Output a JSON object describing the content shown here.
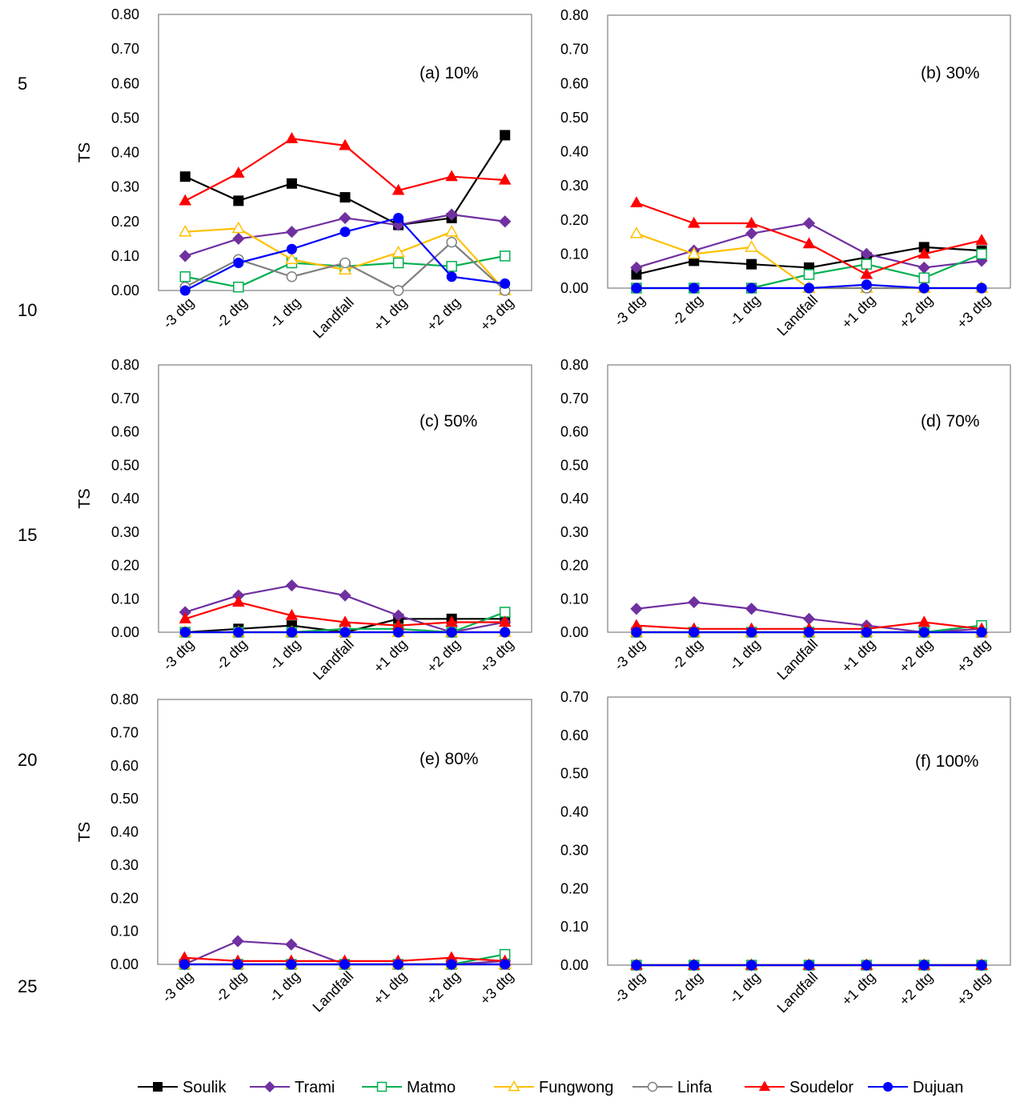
{
  "line_numbers": [
    "5",
    "10",
    "15",
    "20",
    "25"
  ],
  "colors": {
    "Soulik": "#000000",
    "Trami": "#7030a0",
    "Matmo": "#00b050",
    "Fungwong": "#ffc000",
    "Linfa": "#808080",
    "Soudelor": "#ff0000",
    "Dujuan": "#0000ff"
  },
  "legend": [
    {
      "name": "Soulik",
      "marker": "square-filled"
    },
    {
      "name": "Trami",
      "marker": "diamond-filled"
    },
    {
      "name": "Matmo",
      "marker": "square-open"
    },
    {
      "name": "Fungwong",
      "marker": "triangle-open"
    },
    {
      "name": "Linfa",
      "marker": "circle-open"
    },
    {
      "name": "Soudelor",
      "marker": "triangle-filled"
    },
    {
      "name": "Dujuan",
      "marker": "circle-filled"
    }
  ],
  "chart_data": [
    {
      "type": "line",
      "panel_label": "(a)  10%",
      "ylabel": "TS",
      "ylim": [
        0,
        0.8
      ],
      "yticks": [
        "0.00",
        "0.10",
        "0.20",
        "0.30",
        "0.40",
        "0.50",
        "0.60",
        "0.70",
        "0.80"
      ],
      "categories": [
        "-3 dtg",
        "-2 dtg",
        "-1 dtg",
        "Landfall",
        "+1 dtg",
        "+2 dtg",
        "+3 dtg"
      ],
      "series": [
        {
          "name": "Soulik",
          "values": [
            0.33,
            0.26,
            0.31,
            0.27,
            0.19,
            0.21,
            0.45
          ]
        },
        {
          "name": "Trami",
          "values": [
            0.1,
            0.15,
            0.17,
            0.21,
            0.19,
            0.22,
            0.2
          ]
        },
        {
          "name": "Matmo",
          "values": [
            0.04,
            0.01,
            0.08,
            0.07,
            0.08,
            0.07,
            0.1
          ]
        },
        {
          "name": "Fungwong",
          "values": [
            0.17,
            0.18,
            0.09,
            0.06,
            0.11,
            0.17,
            0.0
          ]
        },
        {
          "name": "Linfa",
          "values": [
            0.01,
            0.09,
            0.04,
            0.08,
            0.0,
            0.14,
            0.0
          ]
        },
        {
          "name": "Soudelor",
          "values": [
            0.26,
            0.34,
            0.44,
            0.42,
            0.29,
            0.33,
            0.32
          ]
        },
        {
          "name": "Dujuan",
          "values": [
            0.0,
            0.08,
            0.12,
            0.17,
            0.21,
            0.04,
            0.02
          ]
        }
      ]
    },
    {
      "type": "line",
      "panel_label": "(b)  30%",
      "ylabel": "",
      "ylim": [
        0,
        0.8
      ],
      "yticks": [
        "0.00",
        "0.10",
        "0.20",
        "0.30",
        "0.40",
        "0.50",
        "0.60",
        "0.70",
        "0.80"
      ],
      "categories": [
        "-3 dtg",
        "-2 dtg",
        "-1 dtg",
        "Landfall",
        "+1 dtg",
        "+2 dtg",
        "+3 dtg"
      ],
      "series": [
        {
          "name": "Soulik",
          "values": [
            0.04,
            0.08,
            0.07,
            0.06,
            0.09,
            0.12,
            0.11
          ]
        },
        {
          "name": "Trami",
          "values": [
            0.06,
            0.11,
            0.16,
            0.19,
            0.1,
            0.06,
            0.08
          ]
        },
        {
          "name": "Matmo",
          "values": [
            0.0,
            0.0,
            0.0,
            0.04,
            0.07,
            0.03,
            0.1
          ]
        },
        {
          "name": "Fungwong",
          "values": [
            0.16,
            0.1,
            0.12,
            0.0,
            0.0,
            0.0,
            0.0
          ]
        },
        {
          "name": "Linfa",
          "values": [
            0.0,
            0.0,
            0.0,
            0.0,
            0.0,
            0.0,
            0.0
          ]
        },
        {
          "name": "Soudelor",
          "values": [
            0.25,
            0.19,
            0.19,
            0.13,
            0.04,
            0.1,
            0.14
          ]
        },
        {
          "name": "Dujuan",
          "values": [
            0.0,
            0.0,
            0.0,
            0.0,
            0.01,
            0.0,
            0.0
          ]
        }
      ]
    },
    {
      "type": "line",
      "panel_label": "(c)  50%",
      "ylabel": "TS",
      "ylim": [
        0,
        0.8
      ],
      "yticks": [
        "0.00",
        "0.10",
        "0.20",
        "0.30",
        "0.40",
        "0.50",
        "0.60",
        "0.70",
        "0.80"
      ],
      "categories": [
        "-3 dtg",
        "-2 dtg",
        "-1 dtg",
        "Landfall",
        "+1 dtg",
        "+2 dtg",
        "+3 dtg"
      ],
      "series": [
        {
          "name": "Soulik",
          "values": [
            0.0,
            0.01,
            0.02,
            0.0,
            0.04,
            0.04,
            0.04
          ]
        },
        {
          "name": "Trami",
          "values": [
            0.06,
            0.11,
            0.14,
            0.11,
            0.05,
            0.0,
            0.03
          ]
        },
        {
          "name": "Matmo",
          "values": [
            0.0,
            0.0,
            0.0,
            0.01,
            0.01,
            0.0,
            0.06
          ]
        },
        {
          "name": "Fungwong",
          "values": [
            0.0,
            0.0,
            0.0,
            0.0,
            0.0,
            0.0,
            0.0
          ]
        },
        {
          "name": "Linfa",
          "values": [
            0.0,
            0.0,
            0.0,
            0.0,
            0.0,
            0.0,
            0.0
          ]
        },
        {
          "name": "Soudelor",
          "values": [
            0.04,
            0.09,
            0.05,
            0.03,
            0.02,
            0.03,
            0.03
          ]
        },
        {
          "name": "Dujuan",
          "values": [
            0.0,
            0.0,
            0.0,
            0.0,
            0.0,
            0.0,
            0.0
          ]
        }
      ]
    },
    {
      "type": "line",
      "panel_label": "(d)  70%",
      "ylabel": "",
      "ylim": [
        0,
        0.8
      ],
      "yticks": [
        "0.00",
        "0.10",
        "0.20",
        "0.30",
        "0.40",
        "0.50",
        "0.60",
        "0.70",
        "0.80"
      ],
      "categories": [
        "-3 dtg",
        "-2 dtg",
        "-1 dtg",
        "Landfall",
        "+1 dtg",
        "+2 dtg",
        "+3 dtg"
      ],
      "series": [
        {
          "name": "Soulik",
          "values": [
            0.0,
            0.0,
            0.0,
            0.0,
            0.0,
            0.0,
            0.0
          ]
        },
        {
          "name": "Trami",
          "values": [
            0.07,
            0.09,
            0.07,
            0.04,
            0.02,
            0.0,
            0.01
          ]
        },
        {
          "name": "Matmo",
          "values": [
            0.0,
            0.0,
            0.0,
            0.0,
            0.0,
            0.0,
            0.02
          ]
        },
        {
          "name": "Fungwong",
          "values": [
            0.0,
            0.0,
            0.0,
            0.0,
            0.0,
            0.0,
            0.0
          ]
        },
        {
          "name": "Linfa",
          "values": [
            0.0,
            0.0,
            0.0,
            0.0,
            0.0,
            0.0,
            0.0
          ]
        },
        {
          "name": "Soudelor",
          "values": [
            0.02,
            0.01,
            0.01,
            0.01,
            0.01,
            0.03,
            0.01
          ]
        },
        {
          "name": "Dujuan",
          "values": [
            0.0,
            0.0,
            0.0,
            0.0,
            0.0,
            0.0,
            0.0
          ]
        }
      ]
    },
    {
      "type": "line",
      "panel_label": "(e)  80%",
      "ylabel": "TS",
      "ylim": [
        0,
        0.8
      ],
      "yticks": [
        "0.00",
        "0.10",
        "0.20",
        "0.30",
        "0.40",
        "0.50",
        "0.60",
        "0.70",
        "0.80"
      ],
      "categories": [
        "-3 dtg",
        "-2 dtg",
        "-1 dtg",
        "Landfall",
        "+1 dtg",
        "+2 dtg",
        "+3 dtg"
      ],
      "series": [
        {
          "name": "Soulik",
          "values": [
            0.0,
            0.0,
            0.0,
            0.0,
            0.0,
            0.0,
            0.0
          ]
        },
        {
          "name": "Trami",
          "values": [
            0.0,
            0.07,
            0.06,
            0.0,
            0.0,
            0.0,
            0.01
          ]
        },
        {
          "name": "Matmo",
          "values": [
            0.0,
            0.0,
            0.0,
            0.0,
            0.0,
            0.0,
            0.03
          ]
        },
        {
          "name": "Fungwong",
          "values": [
            0.0,
            0.0,
            0.0,
            0.0,
            0.0,
            0.0,
            0.0
          ]
        },
        {
          "name": "Linfa",
          "values": [
            0.0,
            0.0,
            0.0,
            0.0,
            0.0,
            0.0,
            0.0
          ]
        },
        {
          "name": "Soudelor",
          "values": [
            0.02,
            0.01,
            0.01,
            0.01,
            0.01,
            0.02,
            0.01
          ]
        },
        {
          "name": "Dujuan",
          "values": [
            0.0,
            0.0,
            0.0,
            0.0,
            0.0,
            0.0,
            0.0
          ]
        }
      ]
    },
    {
      "type": "line",
      "panel_label": "(f)   100%",
      "ylabel": "",
      "ylim": [
        0,
        0.7
      ],
      "yticks": [
        "0.00",
        "0.10",
        "0.20",
        "0.30",
        "0.40",
        "0.50",
        "0.60",
        "0.70"
      ],
      "categories": [
        "-3 dtg",
        "-2 dtg",
        "-1 dtg",
        "Landfall",
        "+1 dtg",
        "+2 dtg",
        "+3 dtg"
      ],
      "series": [
        {
          "name": "Soulik",
          "values": [
            0,
            0,
            0,
            0,
            0,
            0,
            0
          ]
        },
        {
          "name": "Trami",
          "values": [
            0,
            0,
            0,
            0,
            0,
            0,
            0
          ]
        },
        {
          "name": "Matmo",
          "values": [
            0,
            0,
            0,
            0,
            0,
            0,
            0
          ]
        },
        {
          "name": "Fungwong",
          "values": [
            0,
            0,
            0,
            0,
            0,
            0,
            0
          ]
        },
        {
          "name": "Linfa",
          "values": [
            0,
            0,
            0,
            0,
            0,
            0,
            0
          ]
        },
        {
          "name": "Soudelor",
          "values": [
            0,
            0,
            0,
            0,
            0,
            0,
            0
          ]
        },
        {
          "name": "Dujuan",
          "values": [
            0,
            0,
            0,
            0,
            0,
            0,
            0
          ]
        }
      ]
    }
  ]
}
